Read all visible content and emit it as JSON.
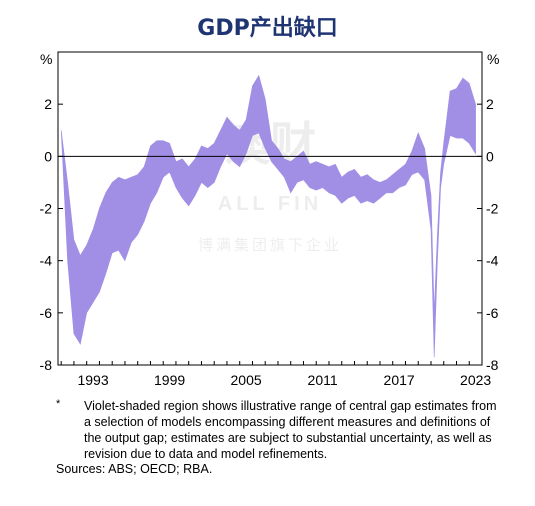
{
  "title": "GDP产出缺口",
  "unit_left": "%",
  "unit_right": "%",
  "note_marker": "*",
  "note": "Violet-shaded region shows illustrative range of central gap estimates from a selection of models encompassing different measures and definitions of the output gap; estimates are subject to substantial uncertainty, as well as revision due to data and model refinements.",
  "sources": "Sources: ABS; OECD; RBA.",
  "watermark": "澳财 ALL FIN 博满集团旗下企业",
  "colors": {
    "band": "#a18fe6",
    "axis": "#000000",
    "grid": "#c8c8c8",
    "title": "#1f3473"
  },
  "chart_data": {
    "type": "area",
    "xlim": [
      1990.75,
      2024.0
    ],
    "ylim": [
      -8,
      4
    ],
    "xticks": [
      1993,
      1999,
      2005,
      2011,
      2017,
      2023
    ],
    "xtick_labels": [
      "1993",
      "1999",
      "2005",
      "2011",
      "2017",
      "2023"
    ],
    "yticks": [
      -8,
      -6,
      -4,
      -2,
      0,
      2
    ],
    "ytick_labels": [
      "-8",
      "-6",
      "-4",
      "-2",
      "0",
      "2"
    ],
    "grid": false,
    "zero_line": true,
    "legend": "none",
    "x": [
      1991.0,
      1991.5,
      1992.0,
      1992.5,
      1993.0,
      1993.5,
      1994.0,
      1994.5,
      1995.0,
      1995.5,
      1996.0,
      1996.5,
      1997.0,
      1997.5,
      1998.0,
      1998.5,
      1999.0,
      1999.5,
      2000.0,
      2000.5,
      2001.0,
      2001.5,
      2002.0,
      2002.5,
      2003.0,
      2003.5,
      2004.0,
      2004.5,
      2005.0,
      2005.5,
      2006.0,
      2006.5,
      2007.0,
      2007.5,
      2008.0,
      2008.5,
      2009.0,
      2009.5,
      2010.0,
      2010.5,
      2011.0,
      2011.5,
      2012.0,
      2012.5,
      2013.0,
      2013.5,
      2014.0,
      2014.5,
      2015.0,
      2015.5,
      2016.0,
      2016.5,
      2017.0,
      2017.5,
      2018.0,
      2018.5,
      2019.0,
      2019.5,
      2020.0,
      2020.25,
      2020.5,
      2020.75,
      2021.0,
      2021.5,
      2022.0,
      2022.5,
      2023.0,
      2023.5
    ],
    "series": [
      {
        "role": "upper",
        "values": [
          1.0,
          -1.0,
          -3.2,
          -3.8,
          -3.4,
          -2.8,
          -2.0,
          -1.4,
          -1.0,
          -0.8,
          -0.9,
          -0.8,
          -0.7,
          -0.4,
          0.4,
          0.6,
          0.6,
          0.5,
          -0.2,
          -0.1,
          -0.4,
          -0.1,
          0.4,
          0.3,
          0.5,
          1.0,
          1.5,
          1.2,
          1.0,
          1.4,
          2.7,
          3.1,
          2.2,
          0.6,
          0.3,
          -0.1,
          -0.2,
          0.0,
          0.2,
          -0.3,
          -0.2,
          -0.3,
          -0.4,
          -0.3,
          -0.8,
          -0.6,
          -0.5,
          -0.8,
          -0.7,
          -0.9,
          -1.0,
          -0.9,
          -0.7,
          -0.5,
          -0.3,
          0.2,
          0.9,
          0.3,
          -1.5,
          -6.0,
          -3.0,
          -0.6,
          0.5,
          2.5,
          2.6,
          3.0,
          2.8,
          2.0
        ]
      },
      {
        "role": "lower",
        "values": [
          1.0,
          -4.0,
          -6.8,
          -7.2,
          -6.0,
          -5.6,
          -5.2,
          -4.5,
          -3.7,
          -3.6,
          -4.0,
          -3.3,
          -3.0,
          -2.5,
          -1.8,
          -1.4,
          -0.8,
          -0.6,
          -1.2,
          -1.6,
          -1.9,
          -1.5,
          -1.0,
          -1.2,
          -1.0,
          -0.4,
          0.1,
          -0.2,
          -0.4,
          0.1,
          0.8,
          0.9,
          0.3,
          -0.2,
          -0.5,
          -0.8,
          -1.4,
          -1.0,
          -0.9,
          -1.2,
          -1.3,
          -1.2,
          -1.4,
          -1.5,
          -1.8,
          -1.6,
          -1.5,
          -1.8,
          -1.7,
          -1.8,
          -1.6,
          -1.4,
          -1.4,
          -1.2,
          -1.1,
          -0.7,
          -0.6,
          -0.9,
          -2.8,
          -7.7,
          -4.0,
          -1.2,
          -0.3,
          0.8,
          0.7,
          0.7,
          0.5,
          0.1
        ]
      }
    ]
  }
}
